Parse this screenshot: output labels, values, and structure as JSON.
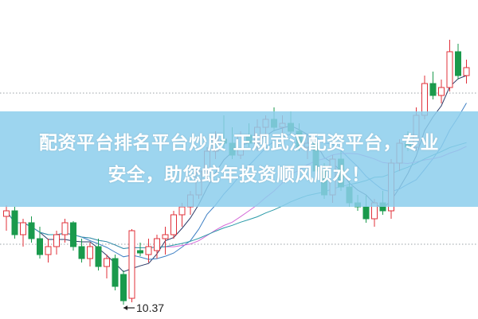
{
  "chart_data": {
    "type": "candlestick",
    "title": "",
    "xlabel": "",
    "ylabel": "",
    "grid": "dotted horizontal lines",
    "colors": {
      "up": "#e0303a",
      "down": "#1a9a4c",
      "ma5": "#2b3a67",
      "ma10": "#3d7fc4",
      "ma20": "#d46ad8",
      "ma30": "#2a9aa8",
      "grid": "#9aa0a6"
    },
    "moving_averages": [
      5,
      10,
      20,
      30
    ],
    "min_label": "10.37",
    "ohlc": [
      [
        11.48,
        11.62,
        11.3,
        11.55
      ],
      [
        11.55,
        11.6,
        11.2,
        11.25
      ],
      [
        11.25,
        11.45,
        11.1,
        11.4
      ],
      [
        11.4,
        11.48,
        11.15,
        11.2
      ],
      [
        11.2,
        11.35,
        10.95,
        11.0
      ],
      [
        11.0,
        11.2,
        10.9,
        11.1
      ],
      [
        11.1,
        11.3,
        11.0,
        11.25
      ],
      [
        11.25,
        11.45,
        11.15,
        11.4
      ],
      [
        11.4,
        11.42,
        11.05,
        11.1
      ],
      [
        11.1,
        11.2,
        10.9,
        10.95
      ],
      [
        10.95,
        11.15,
        10.85,
        11.1
      ],
      [
        11.1,
        11.2,
        10.8,
        10.85
      ],
      [
        10.85,
        11.0,
        10.7,
        10.95
      ],
      [
        10.95,
        11.0,
        10.55,
        10.6
      ],
      [
        10.75,
        10.8,
        10.37,
        10.42
      ],
      [
        10.45,
        11.32,
        10.4,
        11.3
      ],
      [
        11.05,
        11.15,
        10.98,
        11.02
      ],
      [
        11.0,
        11.2,
        10.9,
        11.1
      ],
      [
        11.05,
        11.25,
        10.95,
        11.2
      ],
      [
        11.2,
        11.35,
        11.0,
        11.25
      ],
      [
        11.25,
        11.55,
        11.2,
        11.5
      ],
      [
        11.5,
        11.65,
        11.35,
        11.6
      ],
      [
        11.6,
        11.8,
        11.5,
        11.75
      ],
      [
        11.75,
        12.1,
        11.7,
        12.05
      ],
      [
        12.05,
        12.35,
        11.95,
        12.3
      ],
      [
        12.3,
        12.55,
        12.2,
        12.45
      ],
      [
        12.45,
        12.75,
        12.3,
        12.4
      ],
      [
        12.4,
        12.6,
        12.2,
        12.25
      ],
      [
        12.25,
        12.55,
        12.2,
        12.5
      ],
      [
        12.5,
        12.65,
        12.35,
        12.4
      ],
      [
        12.4,
        12.7,
        12.3,
        12.6
      ],
      [
        12.6,
        12.75,
        12.5,
        12.7
      ],
      [
        12.7,
        12.85,
        12.55,
        12.6
      ],
      [
        12.6,
        12.75,
        12.45,
        12.65
      ],
      [
        12.65,
        12.8,
        12.5,
        12.55
      ],
      [
        12.55,
        12.65,
        12.3,
        12.35
      ],
      [
        12.35,
        12.5,
        12.2,
        12.4
      ],
      [
        12.4,
        12.45,
        12.0,
        12.05
      ],
      [
        12.05,
        12.15,
        11.7,
        11.75
      ],
      [
        11.75,
        12.25,
        11.65,
        12.2
      ],
      [
        12.2,
        12.3,
        11.8,
        11.85
      ],
      [
        11.85,
        11.95,
        11.6,
        11.65
      ],
      [
        11.65,
        11.75,
        11.55,
        11.6
      ],
      [
        11.6,
        11.75,
        11.4,
        11.45
      ],
      [
        11.45,
        11.7,
        11.35,
        11.65
      ],
      [
        11.65,
        11.8,
        11.5,
        11.55
      ],
      [
        11.55,
        12.2,
        11.45,
        12.15
      ],
      [
        12.15,
        12.45,
        12.05,
        12.4
      ],
      [
        12.4,
        12.55,
        12.3,
        12.35
      ],
      [
        12.35,
        12.85,
        12.3,
        12.75
      ],
      [
        12.75,
        13.25,
        12.7,
        13.15
      ],
      [
        13.15,
        13.3,
        12.95,
        13.0
      ],
      [
        13.0,
        13.2,
        12.9,
        13.1
      ],
      [
        13.1,
        13.7,
        13.05,
        13.55
      ],
      [
        13.55,
        13.65,
        13.2,
        13.25
      ],
      [
        13.25,
        13.45,
        13.15,
        13.35
      ]
    ]
  },
  "banner": {
    "line1": "配资平台排名平台炒股 正规武汉配资平台，专业",
    "line2": "安全，助您蛇年投资顺风顺水！"
  }
}
